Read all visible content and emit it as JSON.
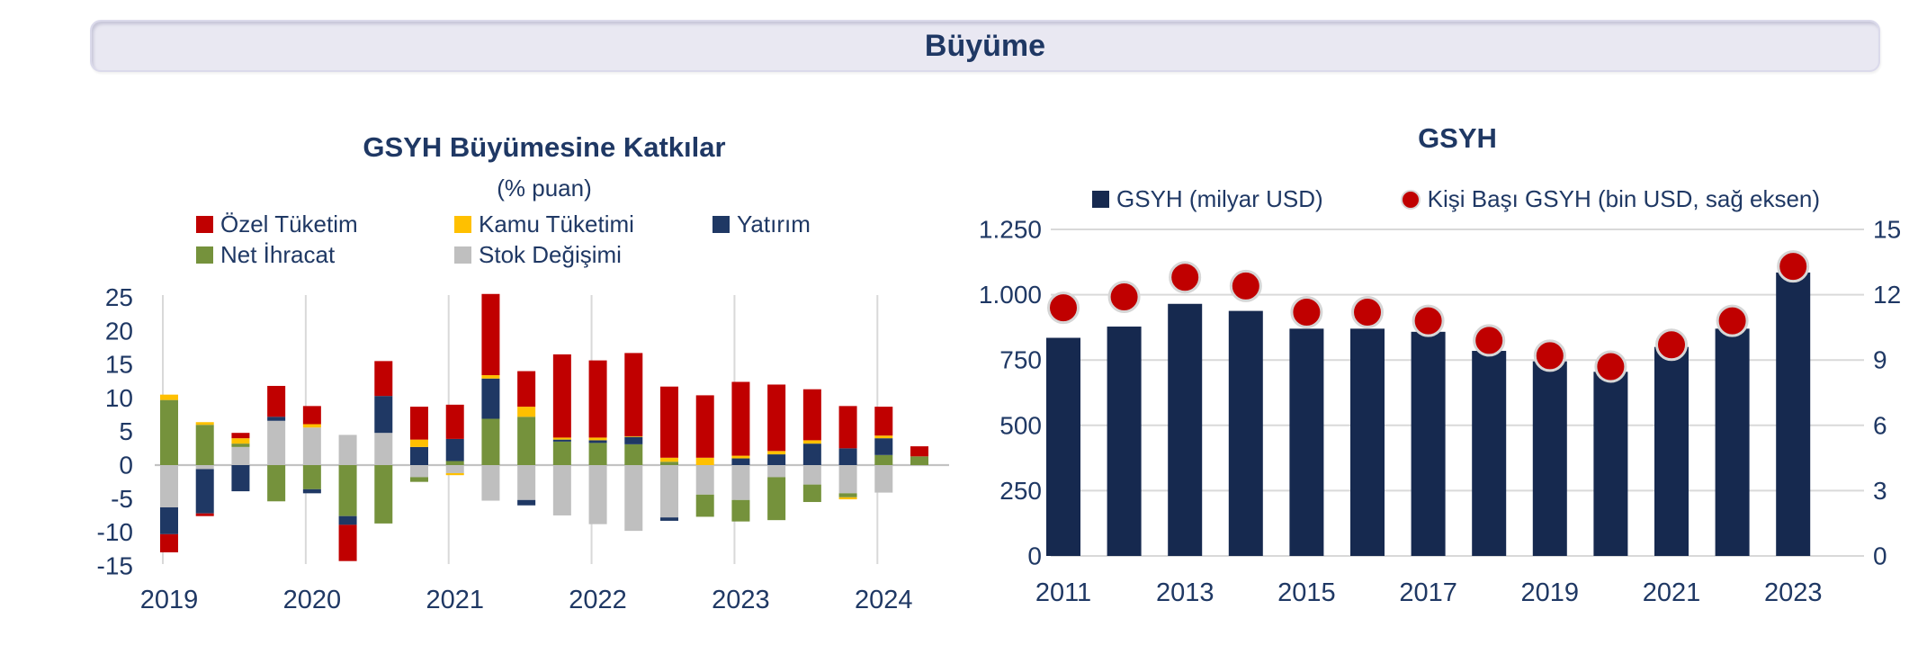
{
  "header": {
    "title": "Büyüme"
  },
  "colors": {
    "text_navy": "#1F3864",
    "gridline": "#D9D9D9",
    "axis_line": "#C3C3C3",
    "banner_bg": "#E9E8F2",
    "red": "#C00000",
    "yellow": "#FFC000",
    "navy": "#1F3864",
    "green": "#75923C",
    "gray": "#BFBFBF",
    "dark_bar": "#16294F",
    "dot_ring": "#D6D6D6"
  },
  "chart_data": [
    {
      "type": "bar",
      "stacked": true,
      "title": "GSYH Büyümesine Katkılar",
      "subtitle": "(% puan)",
      "ylabel": "% puan",
      "ylim": [
        -15,
        25
      ],
      "y_ticks": [
        25,
        20,
        15,
        10,
        5,
        0,
        -5,
        -10,
        -15
      ],
      "x_labels": [
        "2019",
        "2020",
        "2021",
        "2022",
        "2023",
        "2024"
      ],
      "gridlines": "vertical-year-separators",
      "legend_position": "top",
      "categories": [
        "2019Ç1",
        "2019Ç2",
        "2019Ç3",
        "2019Ç4",
        "2020Ç1",
        "2020Ç2",
        "2020Ç3",
        "2020Ç4",
        "2021Ç1",
        "2021Ç2",
        "2021Ç3",
        "2021Ç4",
        "2022Ç1",
        "2022Ç2",
        "2022Ç3",
        "2022Ç4",
        "2023Ç1",
        "2023Ç2",
        "2023Ç3",
        "2023Ç4",
        "2024Ç1",
        "2024Ç2"
      ],
      "stack_order_from_axis": [
        "Stok Değişimi",
        "Net İhracat",
        "Yatırım",
        "Kamu Tüketimi",
        "Özel Tüketim"
      ],
      "series": [
        {
          "name": "Özel Tüketim",
          "color": "#C00000",
          "marker": "square",
          "values": [
            -2.7,
            -0.4,
            0.8,
            4.6,
            2.7,
            -5.4,
            5.2,
            4.9,
            5.1,
            12.1,
            5.3,
            12.4,
            11.5,
            12.4,
            10.6,
            9.3,
            11.0,
            9.9,
            7.6,
            6.3,
            4.3,
            1.5
          ]
        },
        {
          "name": "Kamu Tüketimi",
          "color": "#FFC000",
          "marker": "square",
          "values": [
            0.8,
            0.4,
            0.8,
            0.0,
            0.5,
            0.0,
            0.0,
            1.1,
            -0.3,
            0.5,
            1.5,
            0.3,
            0.4,
            0.1,
            0.6,
            1.1,
            0.4,
            0.5,
            0.5,
            -0.3,
            0.4,
            0.0
          ]
        },
        {
          "name": "Yatırım",
          "color": "#1F3864",
          "marker": "square",
          "values": [
            -4.0,
            -6.6,
            -3.9,
            0.6,
            -0.6,
            -1.3,
            5.5,
            2.7,
            3.3,
            6.0,
            -0.8,
            0.3,
            0.4,
            1.1,
            -0.5,
            0.0,
            1.0,
            1.6,
            3.2,
            2.5,
            2.5,
            0.0
          ]
        },
        {
          "name": "Net İhracat",
          "color": "#75923C",
          "marker": "square",
          "values": [
            9.7,
            6.0,
            0.5,
            -5.4,
            -3.6,
            -7.6,
            -8.7,
            -0.7,
            0.6,
            6.9,
            7.2,
            3.5,
            3.3,
            3.1,
            0.5,
            -3.3,
            -3.2,
            -6.4,
            -2.6,
            -0.6,
            1.5,
            1.3
          ]
        },
        {
          "name": "Stok Değişimi",
          "color": "#BFBFBF",
          "marker": "square",
          "values": [
            -6.3,
            -0.6,
            2.7,
            6.6,
            5.6,
            4.5,
            4.8,
            -1.8,
            -1.2,
            -5.3,
            -5.2,
            -7.5,
            -8.8,
            -9.8,
            -7.8,
            -4.4,
            -5.2,
            -1.8,
            -2.9,
            -4.2,
            -4.1,
            0.0
          ]
        }
      ]
    },
    {
      "type": "bar+scatter",
      "title": "GSYH",
      "categories": [
        2011,
        2012,
        2013,
        2014,
        2015,
        2016,
        2017,
        2018,
        2019,
        2020,
        2021,
        2022,
        2023
      ],
      "x_tick_labels": [
        "2011",
        "2013",
        "2015",
        "2017",
        "2019",
        "2021",
        "2023"
      ],
      "gridlines": "horizontal",
      "legend_position": "top",
      "left_axis": {
        "min": 0,
        "max": 1250,
        "tick_values": [
          1250,
          1000,
          750,
          500,
          250,
          0
        ],
        "tick_labels": [
          "1.250",
          "1.000",
          "750",
          "500",
          "250",
          "0"
        ]
      },
      "right_axis": {
        "min": 0,
        "max": 15,
        "tick_values": [
          15,
          12,
          9,
          6,
          3,
          0
        ],
        "tick_labels": [
          "15",
          "12",
          "9",
          "6",
          "3",
          "0"
        ]
      },
      "series": [
        {
          "name": "GSYH (milyar USD)",
          "type": "bar",
          "axis": "left",
          "color": "#16294F",
          "marker": "square",
          "values": [
            835,
            878,
            965,
            938,
            870,
            870,
            858,
            785,
            745,
            705,
            800,
            870,
            1085
          ]
        },
        {
          "name": "Kişi Başı GSYH (bin USD, sağ eksen)",
          "type": "scatter",
          "axis": "right",
          "color": "#C00000",
          "marker": "circle",
          "values": [
            11.4,
            11.9,
            12.8,
            12.4,
            11.2,
            11.2,
            10.8,
            9.9,
            9.2,
            8.7,
            9.7,
            10.8,
            13.3
          ]
        }
      ]
    }
  ]
}
